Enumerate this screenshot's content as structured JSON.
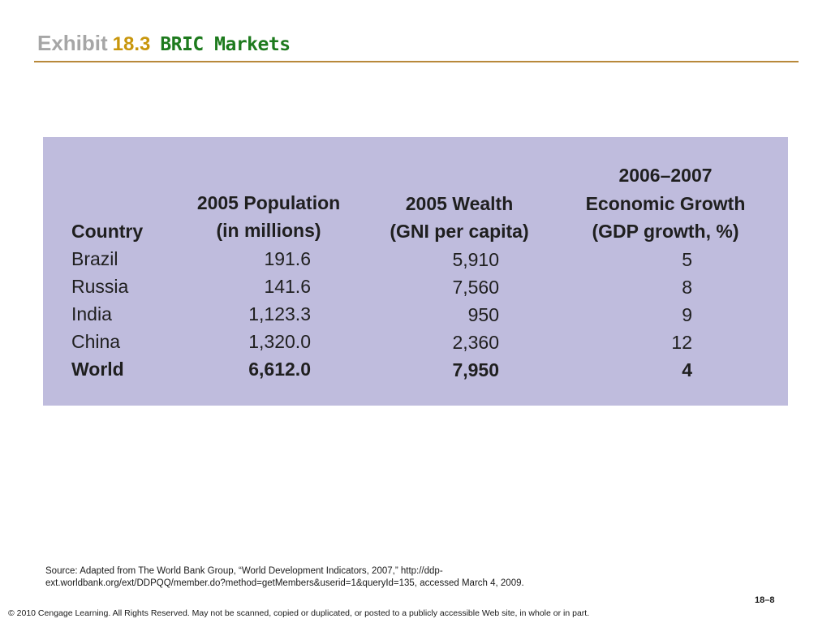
{
  "title": {
    "exhibit": "Exhibit",
    "number": "18.3",
    "name": "BRIC Markets"
  },
  "table": {
    "headers": {
      "country": "Country",
      "population_line1": "2005 Population",
      "population_line2": "(in millions)",
      "wealth_line1": "2005 Wealth",
      "wealth_line2": "(GNI per capita)",
      "growth_line1": "2006–2007",
      "growth_line2": "Economic Growth",
      "growth_line3": "(GDP growth, %)"
    },
    "rows": [
      {
        "country": "Brazil",
        "population": "191.6",
        "wealth": "5,910",
        "growth": "5"
      },
      {
        "country": "Russia",
        "population": "141.6",
        "wealth": "7,560",
        "growth": "8"
      },
      {
        "country": "India",
        "population": "1,123.3",
        "wealth": "950",
        "growth": "9"
      },
      {
        "country": "China",
        "population": "1,320.0",
        "wealth": "2,360",
        "growth": "12"
      },
      {
        "country": "World",
        "population": "6,612.0",
        "wealth": "7,950",
        "growth": "4"
      }
    ]
  },
  "source": "Source: Adapted from The World Bank Group, “World Development Indicators, 2007,” http://ddp-ext.worldbank.org/ext/DDPQQ/member.do?method=getMembers&userid=1&queryId=135, accessed March 4, 2009.",
  "page_number": "18–8",
  "copyright": "© 2010 Cengage Learning. All Rights Reserved. May not be scanned, copied or duplicated, or posted to a publicly accessible Web site, in whole or in part.",
  "colors": {
    "exhibit_gray": "#a6a6a6",
    "number_gold": "#c8960c",
    "title_green": "#1d7a1d",
    "rule_brown": "#b8893a",
    "table_lavender": "#bfbcdd"
  }
}
